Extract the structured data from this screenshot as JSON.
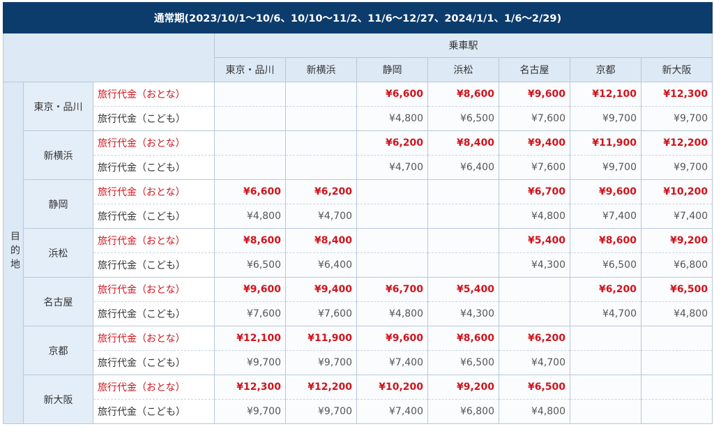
{
  "title": "通常期(2023/10/1～10/6、10/10～11/2、11/6～12/27、2024/1/1、1/6～2/29)",
  "header": {
    "group_label": "乗車駅",
    "stations": [
      "東京・品川",
      "新横浜",
      "静岡",
      "浜松",
      "名古屋",
      "京都",
      "新大阪"
    ]
  },
  "side_label": "目的地",
  "rows": [
    {
      "station": "東京・品川",
      "fares": [
        {
          "label": "旅行代金（おとな）",
          "values": [
            null,
            null,
            "¥6,600",
            "¥8,600",
            "¥9,600",
            "¥12,100",
            "¥12,300"
          ]
        },
        {
          "label": "旅行代金（こども）",
          "values": [
            null,
            null,
            "¥4,800",
            "¥6,500",
            "¥7,600",
            "¥9,700",
            "¥9,700"
          ]
        }
      ]
    },
    {
      "station": "新横浜",
      "fares": [
        {
          "label": "旅行代金（おとな）",
          "values": [
            null,
            null,
            "¥6,200",
            "¥8,400",
            "¥9,400",
            "¥11,900",
            "¥12,200"
          ]
        },
        {
          "label": "旅行代金（こども）",
          "values": [
            null,
            null,
            "¥4,700",
            "¥6,400",
            "¥7,600",
            "¥9,700",
            "¥9,700"
          ]
        }
      ]
    },
    {
      "station": "静岡",
      "fares": [
        {
          "label": "旅行代金（おとな）",
          "values": [
            "¥6,600",
            "¥6,200",
            null,
            null,
            "¥6,700",
            "¥9,600",
            "¥10,200"
          ]
        },
        {
          "label": "旅行代金（こども）",
          "values": [
            "¥4,800",
            "¥4,700",
            null,
            null,
            "¥4,800",
            "¥7,400",
            "¥7,400"
          ]
        }
      ]
    },
    {
      "station": "浜松",
      "fares": [
        {
          "label": "旅行代金（おとな）",
          "values": [
            "¥8,600",
            "¥8,400",
            null,
            null,
            "¥5,400",
            "¥8,600",
            "¥9,200"
          ]
        },
        {
          "label": "旅行代金（こども）",
          "values": [
            "¥6,500",
            "¥6,400",
            null,
            null,
            "¥4,300",
            "¥6,500",
            "¥6,800"
          ]
        }
      ]
    },
    {
      "station": "名古屋",
      "fares": [
        {
          "label": "旅行代金（おとな）",
          "values": [
            "¥9,600",
            "¥9,400",
            "¥6,700",
            "¥5,400",
            null,
            "¥6,200",
            "¥6,500"
          ]
        },
        {
          "label": "旅行代金（こども）",
          "values": [
            "¥7,600",
            "¥7,600",
            "¥4,800",
            "¥4,300",
            null,
            "¥4,700",
            "¥4,800"
          ]
        }
      ]
    },
    {
      "station": "京都",
      "fares": [
        {
          "label": "旅行代金（おとな）",
          "values": [
            "¥12,100",
            "¥11,900",
            "¥9,600",
            "¥8,600",
            "¥6,200",
            null,
            null
          ]
        },
        {
          "label": "旅行代金（こども）",
          "values": [
            "¥9,700",
            "¥9,700",
            "¥7,400",
            "¥6,500",
            "¥4,700",
            null,
            null
          ]
        }
      ]
    },
    {
      "station": "新大阪",
      "fares": [
        {
          "label": "旅行代金（おとな）",
          "values": [
            "¥12,300",
            "¥12,200",
            "¥10,200",
            "¥9,200",
            "¥6,500",
            null,
            null
          ]
        },
        {
          "label": "旅行代金（こども）",
          "values": [
            "¥9,700",
            "¥9,700",
            "¥7,400",
            "¥6,800",
            "¥4,800",
            null,
            null
          ]
        }
      ]
    }
  ]
}
